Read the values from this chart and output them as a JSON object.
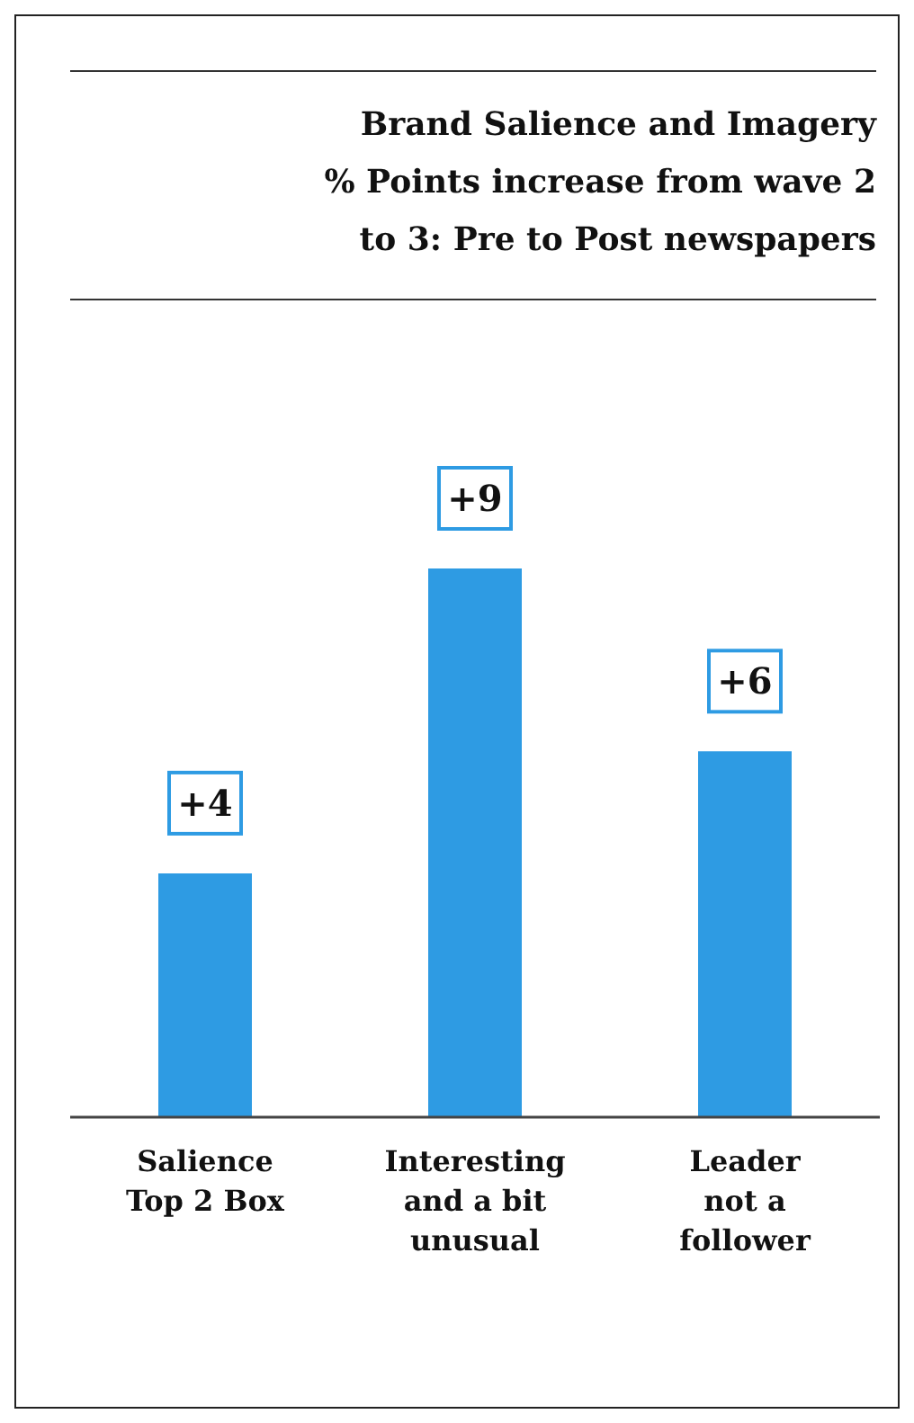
{
  "chart_data": {
    "type": "bar",
    "title": "Brand Salience and Imagery\n% Points increase from wave 2\nto 3: Pre to Post newspapers",
    "categories": [
      "Salience Top 2 Box",
      "Interesting and a bit unusual",
      "Leader not a follower"
    ],
    "values": [
      4,
      9,
      6
    ],
    "color": "#2e9be3",
    "value_labels": [
      "+4",
      "+9",
      "+6"
    ],
    "grid": false,
    "legend": false
  }
}
